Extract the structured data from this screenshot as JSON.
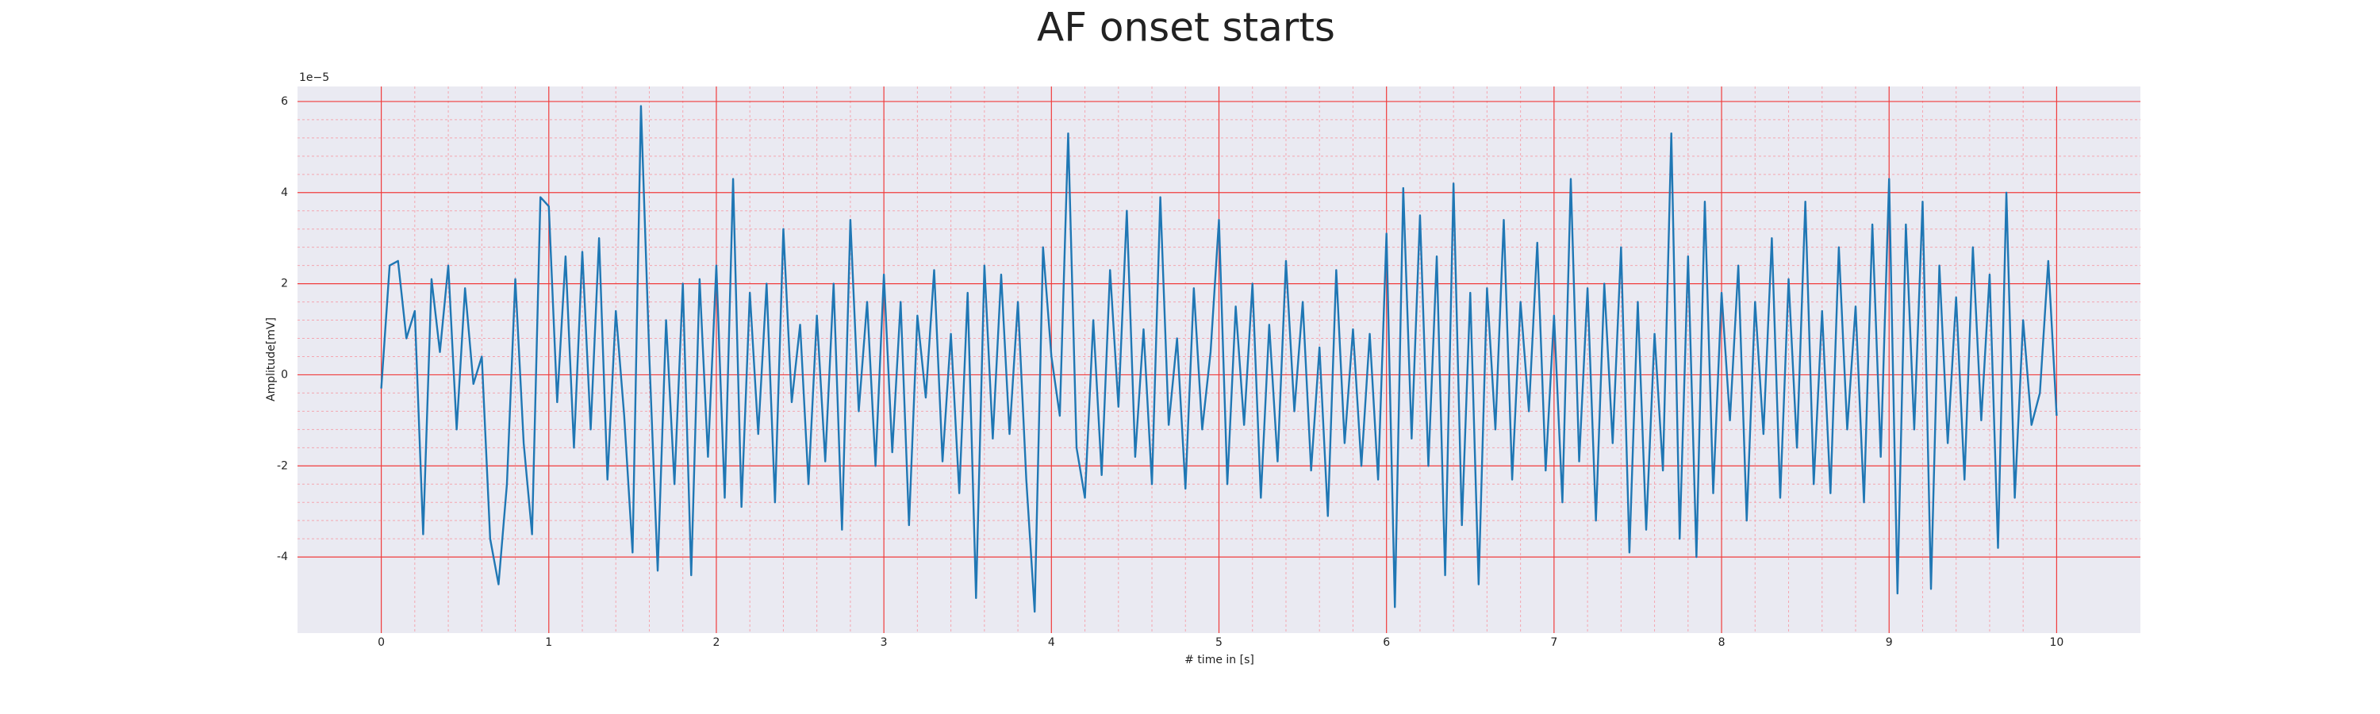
{
  "chart_data": {
    "type": "line",
    "title": "AF onset starts",
    "xlabel": "# time in [s]",
    "ylabel": "Amplitude[mV]",
    "y_offset_label": "1e−5",
    "color": "#1f77b4",
    "grid": true,
    "x": [
      0,
      0.05,
      0.1,
      0.15,
      0.2,
      0.25,
      0.3,
      0.35,
      0.4,
      0.45,
      0.5,
      0.55,
      0.6,
      0.65,
      0.7,
      0.75,
      0.8,
      0.85,
      0.9,
      0.95,
      1,
      1.05,
      1.1,
      1.15,
      1.2,
      1.25,
      1.3,
      1.35,
      1.4,
      1.45,
      1.5,
      1.55,
      1.6,
      1.65,
      1.7,
      1.75,
      1.8,
      1.85,
      1.9,
      1.95,
      2,
      2.05,
      2.1,
      2.15,
      2.2,
      2.25,
      2.3,
      2.35,
      2.4,
      2.45,
      2.5,
      2.55,
      2.6,
      2.65,
      2.7,
      2.75,
      2.8,
      2.85,
      2.9,
      2.95,
      3,
      3.05,
      3.1,
      3.15,
      3.2,
      3.25,
      3.3,
      3.35,
      3.4,
      3.45,
      3.5,
      3.55,
      3.6,
      3.65,
      3.7,
      3.75,
      3.8,
      3.85,
      3.9,
      3.95,
      4,
      4.05,
      4.1,
      4.15,
      4.2,
      4.25,
      4.3,
      4.35,
      4.4,
      4.45,
      4.5,
      4.55,
      4.6,
      4.65,
      4.7,
      4.75,
      4.8,
      4.85,
      4.9,
      4.95,
      5,
      5.05,
      5.1,
      5.15,
      5.2,
      5.25,
      5.3,
      5.35,
      5.4,
      5.45,
      5.5,
      5.55,
      5.6,
      5.65,
      5.7,
      5.75,
      5.8,
      5.85,
      5.9,
      5.95,
      6,
      6.05,
      6.1,
      6.15,
      6.2,
      6.25,
      6.3,
      6.35,
      6.4,
      6.45,
      6.5,
      6.55,
      6.6,
      6.65,
      6.7,
      6.75,
      6.8,
      6.85,
      6.9,
      6.95,
      7,
      7.05,
      7.1,
      7.15,
      7.2,
      7.25,
      7.3,
      7.35,
      7.4,
      7.45,
      7.5,
      7.55,
      7.6,
      7.65,
      7.7,
      7.75,
      7.8,
      7.85,
      7.9,
      7.95,
      8,
      8.05,
      8.1,
      8.15,
      8.2,
      8.25,
      8.3,
      8.35,
      8.4,
      8.45,
      8.5,
      8.55,
      8.6,
      8.65,
      8.7,
      8.75,
      8.8,
      8.85,
      8.9,
      8.95,
      9,
      9.05,
      9.1,
      9.15,
      9.2,
      9.25,
      9.3,
      9.35,
      9.4,
      9.45,
      9.5,
      9.55,
      9.6,
      9.65,
      9.7,
      9.75,
      9.8,
      9.85,
      9.9,
      9.95,
      10
    ],
    "values": [
      -0.3,
      2.4,
      2.5,
      0.8,
      1.4,
      -3.5,
      2.1,
      0.5,
      2.4,
      -1.2,
      1.9,
      -0.2,
      0.4,
      -3.6,
      -4.6,
      -2.4,
      2.1,
      -1.5,
      -3.5,
      3.9,
      3.7,
      -0.6,
      2.6,
      -1.6,
      2.7,
      -1.2,
      3.0,
      -2.3,
      1.4,
      -0.9,
      -3.9,
      5.9,
      0.4,
      -4.3,
      1.2,
      -2.4,
      2.0,
      -4.4,
      2.1,
      -1.8,
      2.4,
      -2.7,
      4.3,
      -2.9,
      1.8,
      -1.3,
      2.0,
      -2.8,
      3.2,
      -0.6,
      1.1,
      -2.4,
      1.3,
      -1.9,
      2.0,
      -3.4,
      3.4,
      -0.8,
      1.6,
      -2.0,
      2.2,
      -1.7,
      1.6,
      -3.3,
      1.3,
      -0.5,
      2.3,
      -1.9,
      0.9,
      -2.6,
      1.8,
      -4.9,
      2.4,
      -1.4,
      2.2,
      -1.3,
      1.6,
      -2.3,
      -5.2,
      2.8,
      0.4,
      -0.9,
      5.3,
      -1.6,
      -2.7,
      1.2,
      -2.2,
      2.3,
      -0.7,
      3.6,
      -1.8,
      1.0,
      -2.4,
      3.9,
      -1.1,
      0.8,
      -2.5,
      1.9,
      -1.2,
      0.5,
      3.4,
      -2.4,
      1.5,
      -1.1,
      2.0,
      -2.7,
      1.1,
      -1.9,
      2.5,
      -0.8,
      1.6,
      -2.1,
      0.6,
      -3.1,
      2.3,
      -1.5,
      1.0,
      -2.0,
      0.9,
      -2.3,
      3.1,
      -5.1,
      4.1,
      -1.4,
      3.5,
      -2.0,
      2.6,
      -4.4,
      4.2,
      -3.3,
      1.8,
      -4.6,
      1.9,
      -1.2,
      3.4,
      -2.3,
      1.6,
      -0.8,
      2.9,
      -2.1,
      1.3,
      -2.8,
      4.3,
      -1.9,
      1.9,
      -3.2,
      2.0,
      -1.5,
      2.8,
      -3.9,
      1.6,
      -3.4,
      0.9,
      -2.1,
      5.3,
      -3.6,
      2.6,
      -4.0,
      3.8,
      -2.6,
      1.8,
      -1.0,
      2.4,
      -3.2,
      1.6,
      -1.3,
      3.0,
      -2.7,
      2.1,
      -1.6,
      3.8,
      -2.4,
      1.4,
      -2.6,
      2.8,
      -1.2,
      1.5,
      -2.8,
      3.3,
      -1.8,
      4.3,
      -4.8,
      3.3,
      -1.2,
      3.8,
      -4.7,
      2.4,
      -1.5,
      1.7,
      -2.3,
      2.8,
      -1.0,
      2.2,
      -3.8,
      4.0,
      -2.7,
      1.2,
      -1.1,
      -0.4,
      2.5,
      -0.9
    ],
    "xlim": [
      -0.5,
      10.5
    ],
    "xticks": [
      0,
      1,
      2,
      3,
      4,
      5,
      6,
      7,
      8,
      9,
      10
    ],
    "ylim": [
      -5.67,
      6.33
    ],
    "yticks": [
      -4,
      -2,
      0,
      2,
      4,
      6
    ]
  }
}
